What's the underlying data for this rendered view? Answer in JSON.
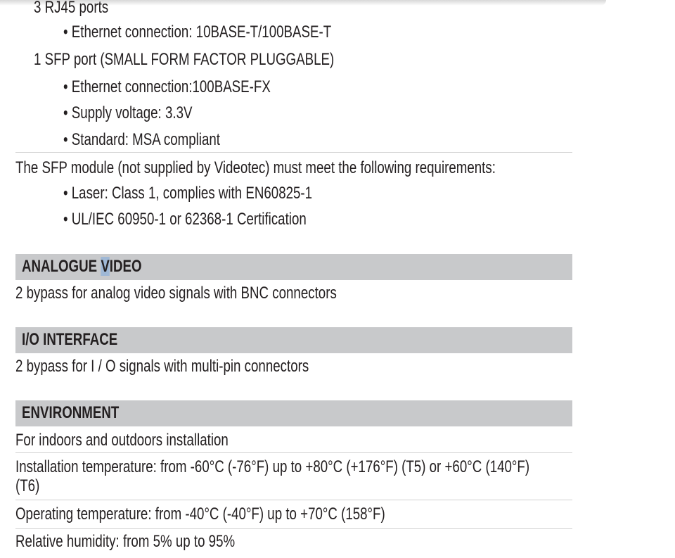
{
  "network": {
    "rj45": "3 RJ45 ports",
    "rj45_items": [
      "• Ethernet connection: 10BASE-T/100BASE-T"
    ],
    "sfp": "1 SFP port (SMALL FORM FACTOR PLUGGABLE)",
    "sfp_items": [
      "• Ethernet connection:100BASE-FX",
      "• Supply voltage: 3.3V",
      "• Standard: MSA compliant"
    ],
    "sfp_module": "The SFP module (not supplied by Videotec) must meet the following requirements:",
    "sfp_module_items": [
      "• Laser: Class 1, complies with EN60825-1",
      "• UL/IEC 60950-1 or 62368-1 Certification"
    ]
  },
  "analogue_video": {
    "title_a": "ANALOGUE ",
    "title_cursor": "V",
    "title_b": "IDEO",
    "text": "2 bypass for analog video signals with BNC connectors"
  },
  "io_interface": {
    "title": "I/O INTERFACE",
    "text": "2 bypass for I / O signals with multi-pin connectors"
  },
  "environment": {
    "title": "ENVIRONMENT",
    "items": [
      "For indoors and outdoors installation",
      "Installation temperature: from -60°C (-76°F) up to +80°C (+176°F) (T5) or +60°C (140°F)",
      "(T6)",
      "Operating temperature: from -40°C (-40°F) up to +70°C (158°F)",
      "Relative humidity: from 5% up to 95%"
    ]
  }
}
